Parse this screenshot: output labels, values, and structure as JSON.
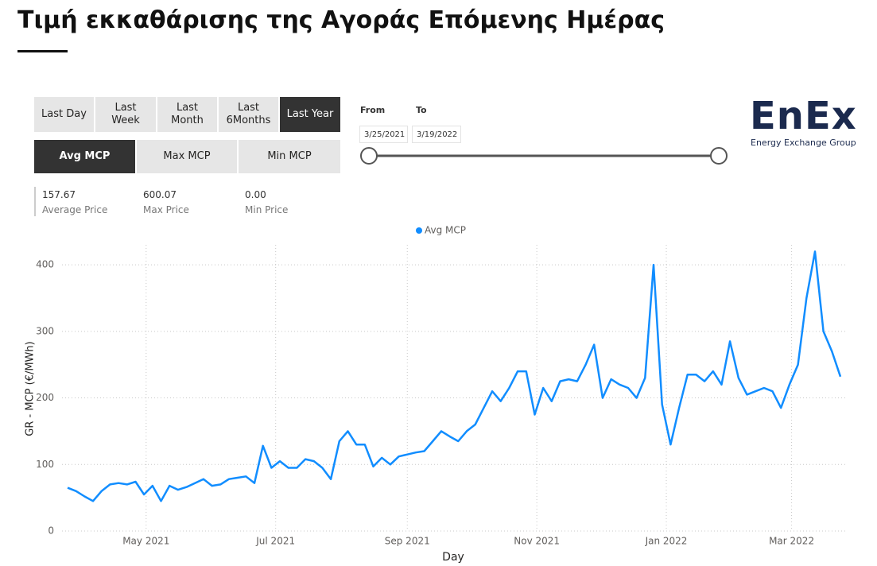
{
  "header": {
    "title": "Τιμή εκκαθάρισης της Αγοράς Επόμενης Ημέρας"
  },
  "controls": {
    "time_buttons": [
      "Last Day",
      "Last Week",
      "Last Month",
      "Last 6Months",
      "Last Year"
    ],
    "active_time_button": 4,
    "measure_buttons": [
      "Avg MCP",
      "Max MCP",
      "Min MCP"
    ],
    "active_measure_button": 0,
    "from_label": "From",
    "to_label": "To",
    "from_date": "3/25/2021",
    "to_date": "3/19/2022"
  },
  "logo": {
    "name": "EnEx",
    "tagline": "Energy Exchange Group"
  },
  "stats": [
    {
      "value": "157.67",
      "label": "Average Price"
    },
    {
      "value": "600.07",
      "label": "Max Price"
    },
    {
      "value": "0.00",
      "label": "Min Price"
    }
  ],
  "chart_data": {
    "type": "line",
    "x_label": "Day",
    "y_label": "GR - MCP (€/MWh)",
    "grid": true,
    "legend": "top",
    "xlim": [
      "2021-03-25",
      "2022-03-24"
    ],
    "xticks": [
      {
        "value": "2021-05-01",
        "label": "May 2021"
      },
      {
        "value": "2021-07-01",
        "label": "Jul 2021"
      },
      {
        "value": "2021-09-01",
        "label": "Sep 2021"
      },
      {
        "value": "2021-11-01",
        "label": "Nov 2021"
      },
      {
        "value": "2022-01-01",
        "label": "Jan 2022"
      },
      {
        "value": "2022-03-01",
        "label": "Mar 2022"
      }
    ],
    "ylim": [
      0,
      430
    ],
    "yticks": [
      0,
      100,
      200,
      300,
      400
    ],
    "x": [
      "2021-03-25",
      "2021-03-29",
      "2021-04-02",
      "2021-04-06",
      "2021-04-10",
      "2021-04-14",
      "2021-04-18",
      "2021-04-22",
      "2021-04-26",
      "2021-04-30",
      "2021-05-04",
      "2021-05-08",
      "2021-05-12",
      "2021-05-16",
      "2021-05-20",
      "2021-05-24",
      "2021-05-28",
      "2021-06-01",
      "2021-06-05",
      "2021-06-09",
      "2021-06-13",
      "2021-06-17",
      "2021-06-21",
      "2021-06-25",
      "2021-06-29",
      "2021-07-03",
      "2021-07-07",
      "2021-07-11",
      "2021-07-15",
      "2021-07-19",
      "2021-07-23",
      "2021-07-27",
      "2021-07-31",
      "2021-08-04",
      "2021-08-08",
      "2021-08-12",
      "2021-08-16",
      "2021-08-20",
      "2021-08-24",
      "2021-08-28",
      "2021-09-01",
      "2021-09-05",
      "2021-09-09",
      "2021-09-13",
      "2021-09-17",
      "2021-09-21",
      "2021-09-25",
      "2021-09-29",
      "2021-10-03",
      "2021-10-07",
      "2021-10-11",
      "2021-10-15",
      "2021-10-19",
      "2021-10-23",
      "2021-10-27",
      "2021-10-31",
      "2021-11-04",
      "2021-11-08",
      "2021-11-12",
      "2021-11-16",
      "2021-11-20",
      "2021-11-24",
      "2021-11-28",
      "2021-12-02",
      "2021-12-06",
      "2021-12-10",
      "2021-12-14",
      "2021-12-18",
      "2021-12-22",
      "2021-12-26",
      "2021-12-30",
      "2022-01-03",
      "2022-01-07",
      "2022-01-11",
      "2022-01-15",
      "2022-01-19",
      "2022-01-23",
      "2022-01-27",
      "2022-01-31",
      "2022-02-04",
      "2022-02-08",
      "2022-02-12",
      "2022-02-16",
      "2022-02-20",
      "2022-02-24",
      "2022-02-28",
      "2022-03-04",
      "2022-03-08",
      "2022-03-12",
      "2022-03-16",
      "2022-03-20",
      "2022-03-24"
    ],
    "series": [
      {
        "name": "Avg MCP",
        "color": "#118DFF",
        "values": [
          65,
          60,
          52,
          45,
          60,
          70,
          72,
          70,
          74,
          55,
          68,
          45,
          68,
          62,
          66,
          72,
          78,
          68,
          70,
          78,
          80,
          82,
          72,
          128,
          95,
          105,
          95,
          95,
          108,
          105,
          95,
          78,
          135,
          150,
          130,
          130,
          97,
          110,
          100,
          112,
          115,
          118,
          120,
          135,
          150,
          142,
          135,
          150,
          160,
          185,
          210,
          195,
          215,
          240,
          240,
          175,
          215,
          195,
          225,
          228,
          225,
          250,
          280,
          200,
          228,
          220,
          215,
          200,
          230,
          400,
          190,
          130,
          185,
          235,
          235,
          225,
          240,
          220,
          285,
          230,
          205,
          210,
          215,
          210,
          185,
          220,
          250,
          350,
          420,
          300,
          270,
          232
        ]
      }
    ]
  }
}
